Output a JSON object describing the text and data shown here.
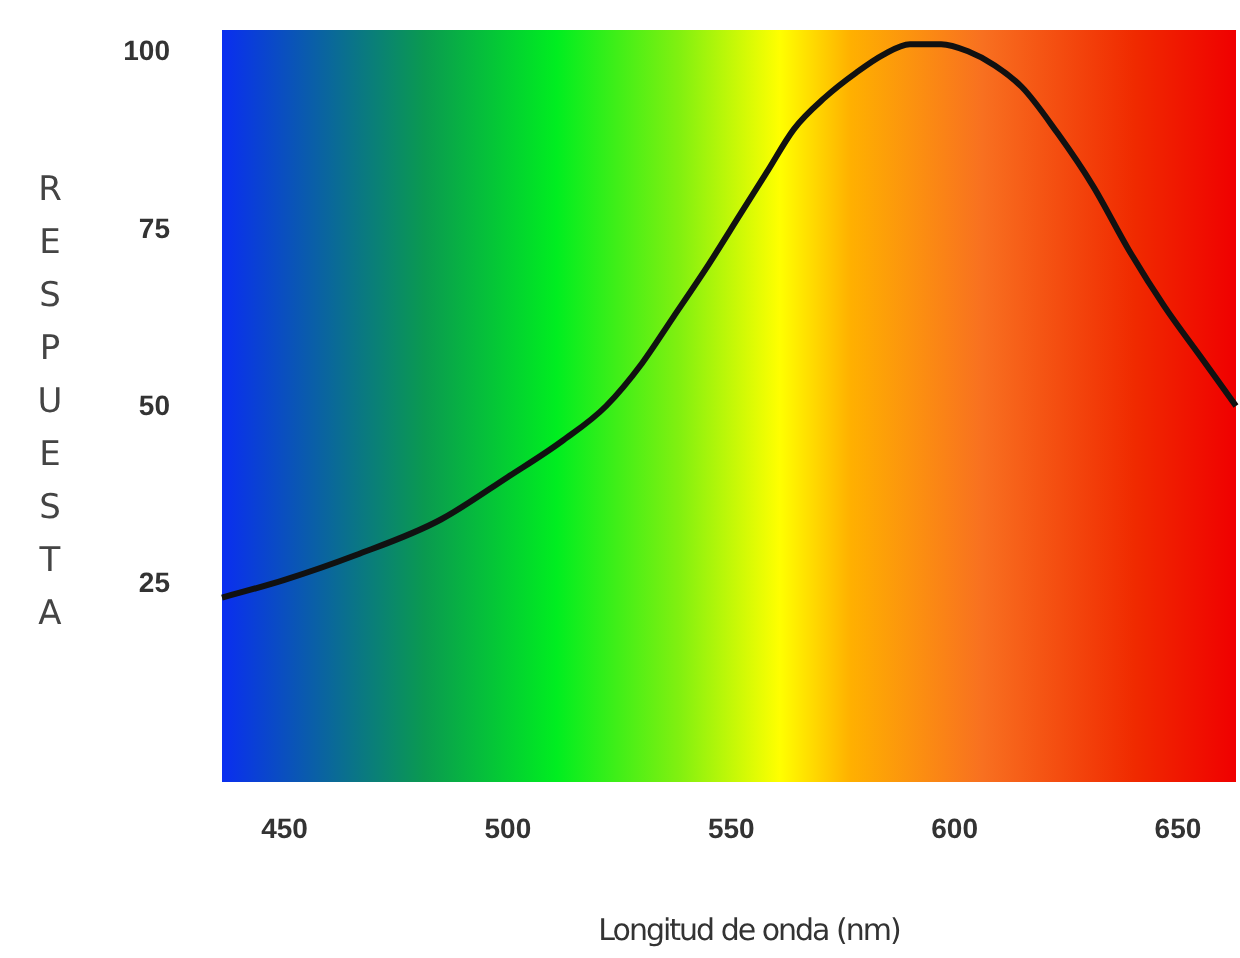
{
  "chart_data": {
    "type": "line",
    "xlabel": "Longitud de onda (nm)",
    "ylabel": "RESPUESTA",
    "x": [
      436,
      450,
      466,
      485,
      500,
      512,
      522,
      530,
      537,
      545,
      552,
      558,
      564,
      571,
      578,
      584,
      590,
      597,
      603,
      609,
      615,
      623,
      631,
      639,
      647,
      655,
      663
    ],
    "series": [
      {
        "color": "#111111",
        "values": [
          23,
          25.5,
          29,
          34,
          40,
          45,
          50,
          56,
          62.5,
          70,
          77,
          83,
          89,
          93.5,
          97,
          99.5,
          101,
          101,
          100,
          98,
          95,
          88.5,
          81,
          72,
          64,
          57,
          50
        ]
      }
    ],
    "xlim": [
      436,
      663
    ],
    "ylim": [
      -3,
      103
    ],
    "xticks": [
      450,
      500,
      550,
      600,
      650
    ],
    "yticks": [
      25,
      50,
      75,
      100
    ],
    "grid": false,
    "marker": "none",
    "line_style": "solid"
  }
}
